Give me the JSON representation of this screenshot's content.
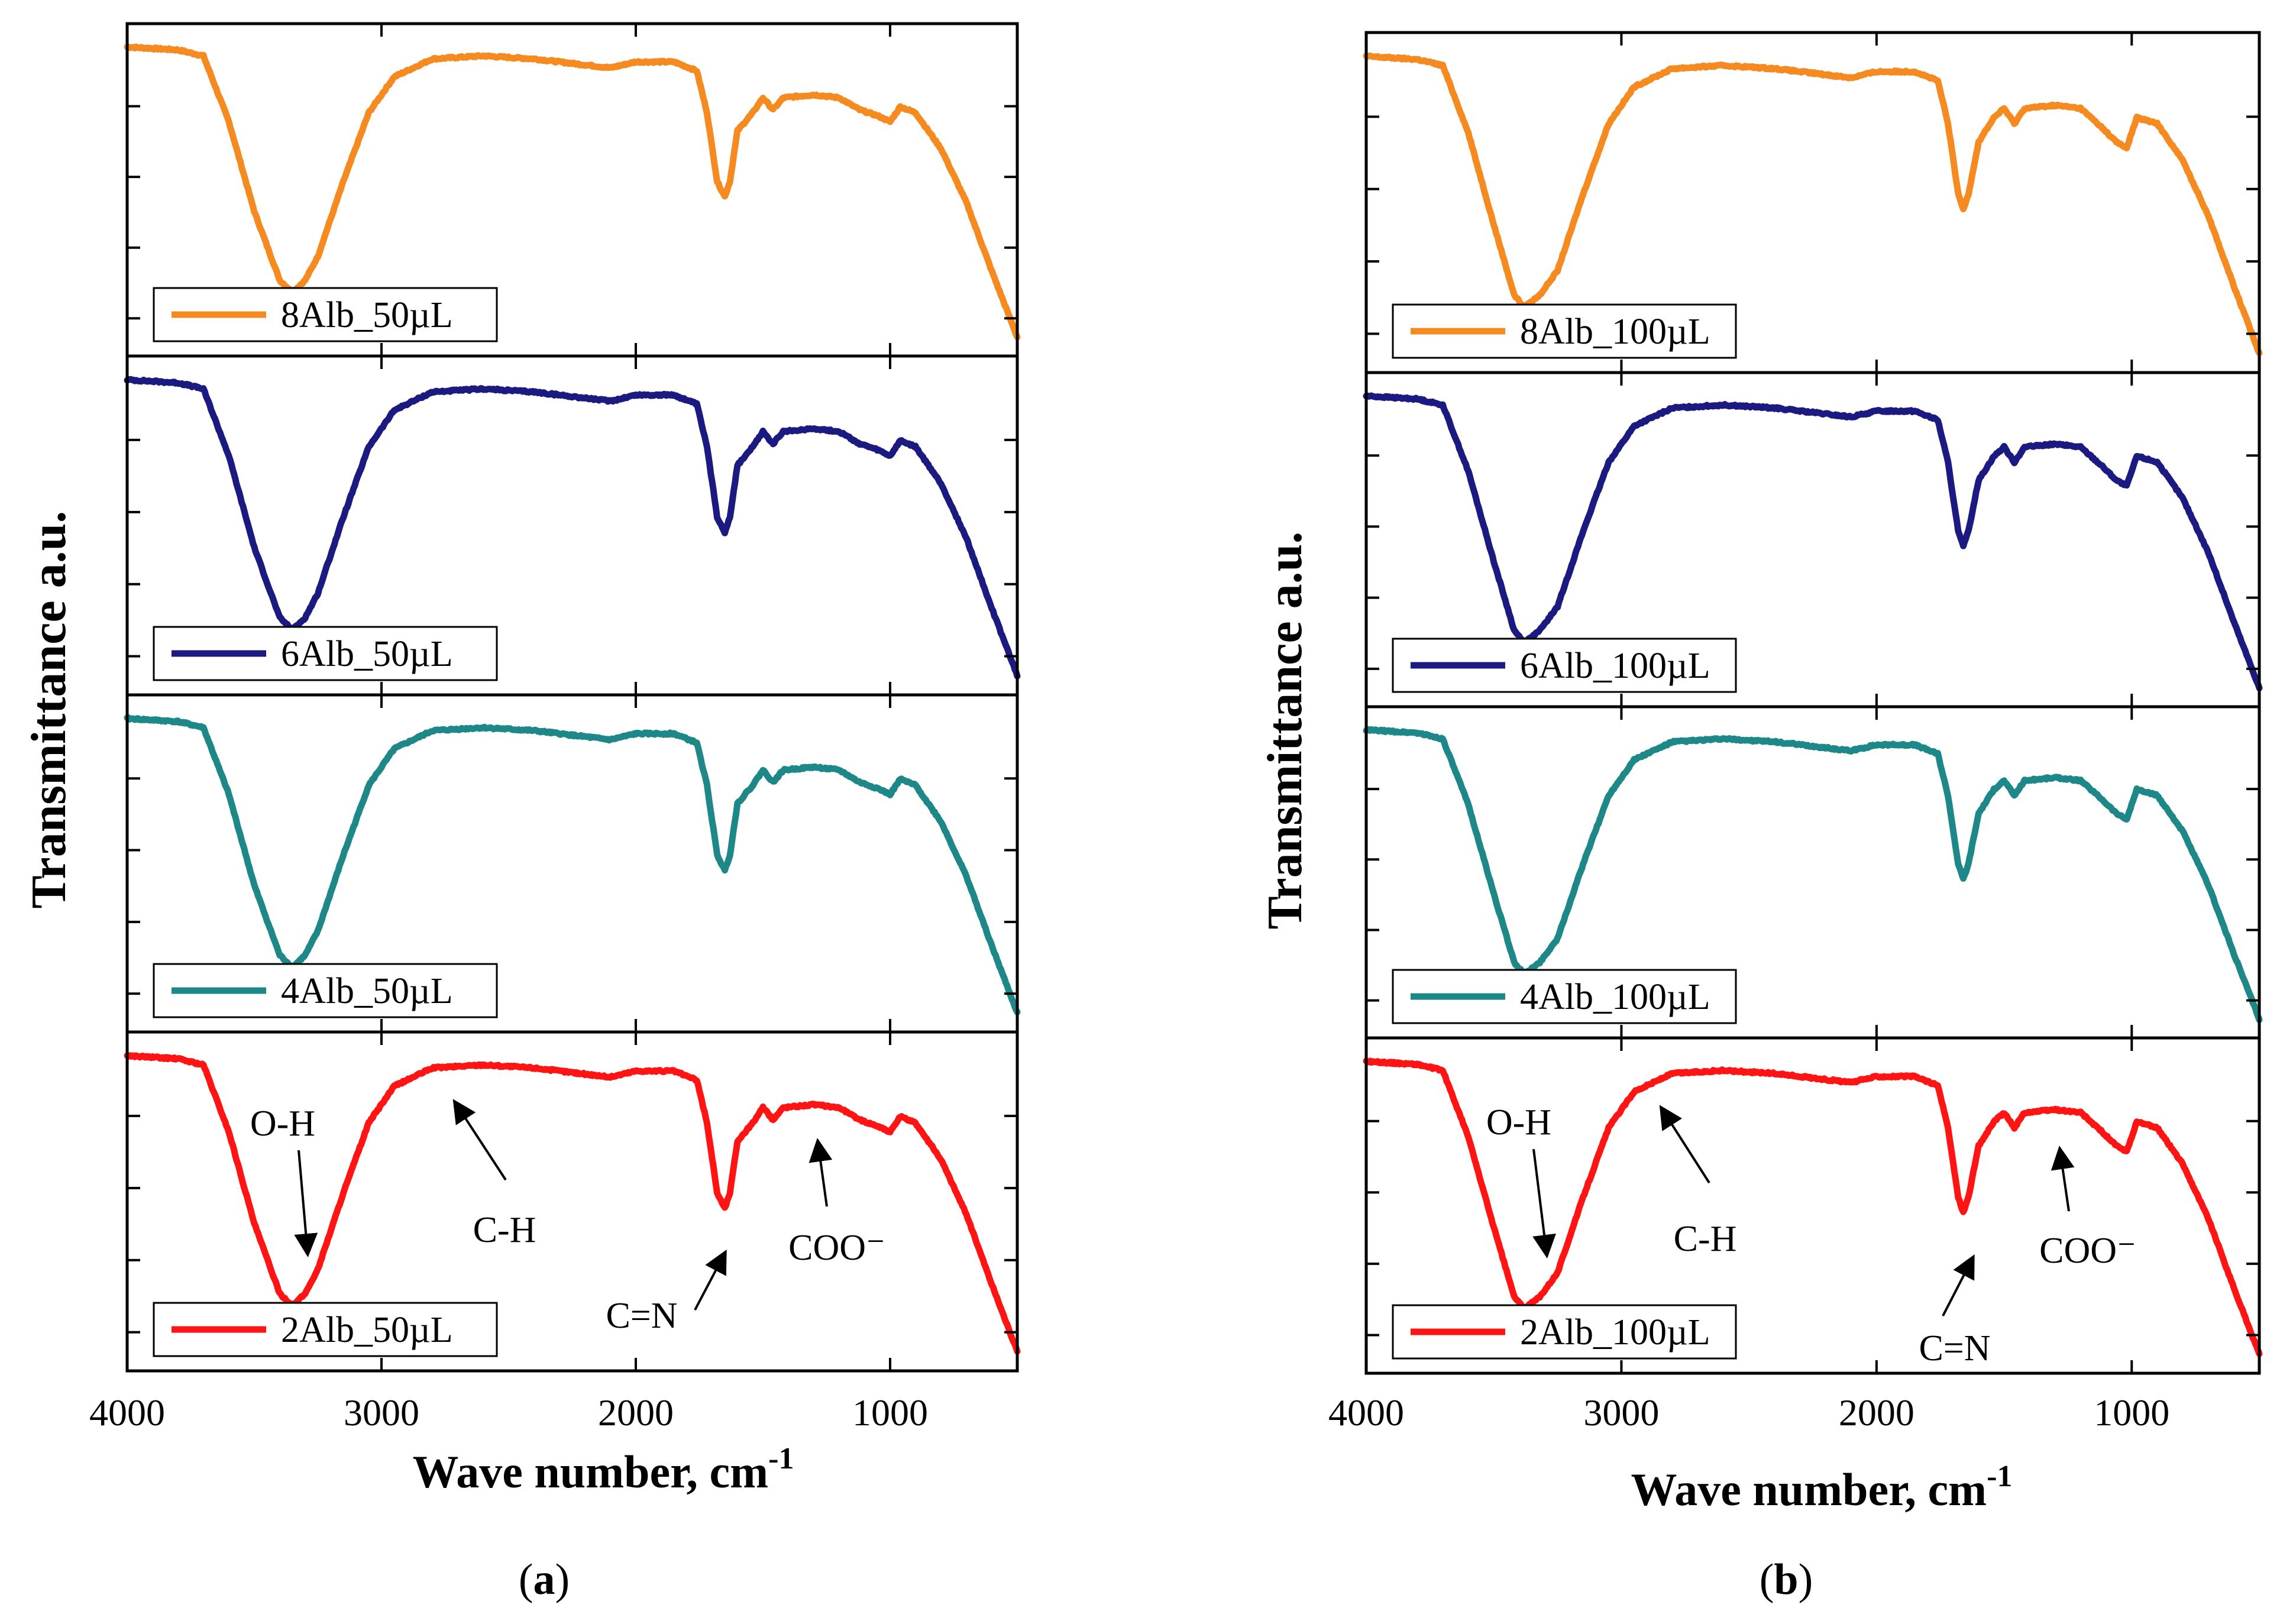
{
  "chart_data": [
    {
      "type": "line",
      "panel_label": "a",
      "xlabel": "Wave number, cm",
      "xlabel_sup": "-1",
      "ylabel": "Transmittance a.u.",
      "xlim": [
        4000,
        500
      ],
      "xticks": [
        4000,
        3000,
        2000,
        1000
      ],
      "y_tick_labels": "none",
      "series": [
        {
          "name": "8Alb_50µL",
          "color": "#f58a20"
        },
        {
          "name": "6Alb_50µL",
          "color": "#1a1a80"
        },
        {
          "name": "4Alb_50µL",
          "color": "#1e8888"
        },
        {
          "name": "2Alb_50µL",
          "color": "#ff1414"
        }
      ],
      "spectrum_points": [
        [
          4000,
          1.0
        ],
        [
          3800,
          0.99
        ],
        [
          3700,
          0.97
        ],
        [
          3600,
          0.75
        ],
        [
          3500,
          0.45
        ],
        [
          3400,
          0.22
        ],
        [
          3350,
          0.18
        ],
        [
          3300,
          0.22
        ],
        [
          3250,
          0.3
        ],
        [
          3150,
          0.55
        ],
        [
          3050,
          0.78
        ],
        [
          2950,
          0.9
        ],
        [
          2800,
          0.96
        ],
        [
          2600,
          0.97
        ],
        [
          2400,
          0.96
        ],
        [
          2200,
          0.94
        ],
        [
          2100,
          0.93
        ],
        [
          2000,
          0.95
        ],
        [
          1850,
          0.95
        ],
        [
          1760,
          0.92
        ],
        [
          1720,
          0.78
        ],
        [
          1680,
          0.55
        ],
        [
          1650,
          0.5
        ],
        [
          1630,
          0.55
        ],
        [
          1600,
          0.72
        ],
        [
          1540,
          0.78
        ],
        [
          1500,
          0.83
        ],
        [
          1460,
          0.79
        ],
        [
          1420,
          0.83
        ],
        [
          1300,
          0.84
        ],
        [
          1200,
          0.83
        ],
        [
          1120,
          0.79
        ],
        [
          1050,
          0.77
        ],
        [
          1000,
          0.75
        ],
        [
          960,
          0.8
        ],
        [
          900,
          0.78
        ],
        [
          800,
          0.66
        ],
        [
          700,
          0.48
        ],
        [
          600,
          0.25
        ],
        [
          500,
          0.03
        ]
      ],
      "annotations": [
        {
          "text": "O-H"
        },
        {
          "text": "C-H"
        },
        {
          "text": "C=N"
        },
        {
          "text": "COO⁻"
        }
      ]
    },
    {
      "type": "line",
      "panel_label": "b",
      "xlabel": "Wave number, cm",
      "xlabel_sup": "-1",
      "ylabel": "Transmittance a.u.",
      "xlim": [
        4000,
        500
      ],
      "xticks": [
        4000,
        3000,
        2000,
        1000
      ],
      "y_tick_labels": "none",
      "series": [
        {
          "name": "8Alb_100µL",
          "color": "#f58a20"
        },
        {
          "name": "6Alb_100µL",
          "color": "#1a1a80"
        },
        {
          "name": "4Alb_100µL",
          "color": "#1e8888"
        },
        {
          "name": "2Alb_100µL",
          "color": "#ff1414"
        }
      ],
      "spectrum_points": [
        [
          4000,
          1.0
        ],
        [
          3800,
          0.99
        ],
        [
          3700,
          0.97
        ],
        [
          3600,
          0.75
        ],
        [
          3500,
          0.45
        ],
        [
          3420,
          0.22
        ],
        [
          3380,
          0.18
        ],
        [
          3320,
          0.22
        ],
        [
          3250,
          0.3
        ],
        [
          3150,
          0.55
        ],
        [
          3050,
          0.78
        ],
        [
          2950,
          0.9
        ],
        [
          2800,
          0.96
        ],
        [
          2600,
          0.97
        ],
        [
          2400,
          0.96
        ],
        [
          2200,
          0.94
        ],
        [
          2100,
          0.93
        ],
        [
          2000,
          0.95
        ],
        [
          1850,
          0.95
        ],
        [
          1760,
          0.92
        ],
        [
          1720,
          0.78
        ],
        [
          1680,
          0.55
        ],
        [
          1660,
          0.5
        ],
        [
          1640,
          0.55
        ],
        [
          1600,
          0.72
        ],
        [
          1540,
          0.8
        ],
        [
          1500,
          0.83
        ],
        [
          1460,
          0.78
        ],
        [
          1420,
          0.83
        ],
        [
          1300,
          0.84
        ],
        [
          1200,
          0.83
        ],
        [
          1120,
          0.77
        ],
        [
          1060,
          0.72
        ],
        [
          1020,
          0.7
        ],
        [
          980,
          0.8
        ],
        [
          900,
          0.78
        ],
        [
          800,
          0.66
        ],
        [
          700,
          0.48
        ],
        [
          600,
          0.25
        ],
        [
          500,
          0.03
        ]
      ],
      "annotations": [
        {
          "text": "O-H"
        },
        {
          "text": "C-H"
        },
        {
          "text": "C=N"
        },
        {
          "text": "COO⁻"
        }
      ]
    }
  ],
  "captions": {
    "a": "a",
    "b": "b"
  }
}
